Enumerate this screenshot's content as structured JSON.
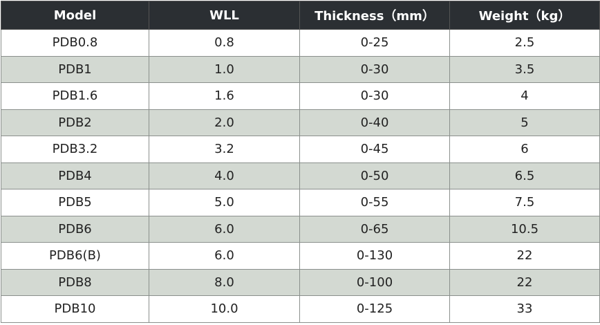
{
  "table": {
    "header": [
      "Model",
      "WLL",
      "Thickness（mm）",
      "Weight（kg）"
    ],
    "rows": [
      [
        "PDB0.8",
        "0.8",
        "0-25",
        "2.5"
      ],
      [
        "PDB1",
        "1.0",
        "0-30",
        "3.5"
      ],
      [
        "PDB1.6",
        "1.6",
        "0-30",
        "4"
      ],
      [
        "PDB2",
        "2.0",
        "0-40",
        "5"
      ],
      [
        "PDB3.2",
        "3.2",
        "0-45",
        "6"
      ],
      [
        "PDB4",
        "4.0",
        "0-50",
        "6.5"
      ],
      [
        "PDB5",
        "5.0",
        "0-55",
        "7.5"
      ],
      [
        "PDB6",
        "6.0",
        "0-65",
        "10.5"
      ],
      [
        "PDB6(B)",
        "6.0",
        "0-130",
        "22"
      ],
      [
        "PDB8",
        "8.0",
        "0-100",
        "22"
      ],
      [
        "PDB10",
        "10.0",
        "0-125",
        "33"
      ]
    ]
  }
}
